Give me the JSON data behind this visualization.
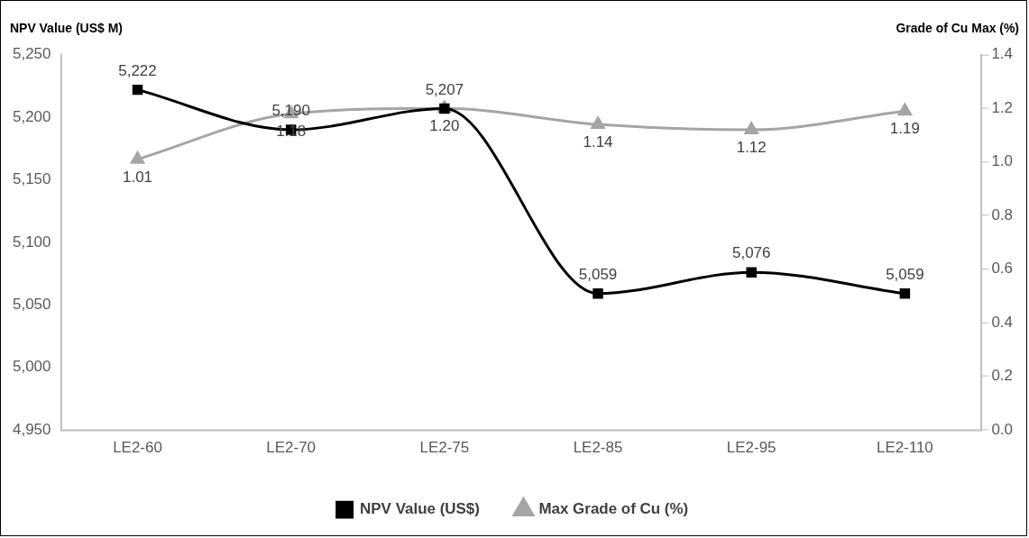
{
  "chart_data": {
    "type": "line",
    "ylabel": "NPV Value (US$ M)",
    "y2label": "Grade of Cu Max (%)",
    "categories": [
      "LE2-60",
      "LE2-70",
      "LE2-75",
      "LE2-85",
      "LE2-95",
      "LE2-110"
    ],
    "series": [
      {
        "name": "NPV Value (US$)",
        "color": "#000000",
        "marker": "square",
        "values": [
          5222,
          5190,
          5207,
          5059,
          5076,
          5059
        ],
        "value_labels": [
          "5,222",
          "5,190",
          "5,207",
          "5,059",
          "5,076",
          "5,059"
        ]
      },
      {
        "name": "Max Grade of Cu (%)",
        "color": "#a5a5a5",
        "marker": "triangle",
        "axis": "y2",
        "values": [
          1.01,
          1.18,
          1.2,
          1.14,
          1.12,
          1.19
        ],
        "value_labels": [
          "1.01",
          "1.18",
          "1.20",
          "1.14",
          "1.12",
          "1.19"
        ]
      }
    ],
    "ylim": [
      4950,
      5250
    ],
    "yticks": [
      {
        "value": 4950,
        "label": "4,950"
      },
      {
        "value": 5000,
        "label": "5,000"
      },
      {
        "value": 5050,
        "label": "5,050"
      },
      {
        "value": 5100,
        "label": "5,100"
      },
      {
        "value": 5150,
        "label": "5,150"
      },
      {
        "value": 5200,
        "label": "5,200"
      },
      {
        "value": 5250,
        "label": "5,250"
      }
    ],
    "y2lim": [
      0,
      1.4
    ],
    "y2ticks": [
      {
        "value": 0,
        "label": "0.0"
      },
      {
        "value": 0.2,
        "label": "0.2"
      },
      {
        "value": 0.4,
        "label": "0.4"
      },
      {
        "value": 0.6,
        "label": "0.6"
      },
      {
        "value": 0.8,
        "label": "0.8"
      },
      {
        "value": 1,
        "label": "1.0"
      },
      {
        "value": 1.2,
        "label": "1.2"
      },
      {
        "value": 1.4,
        "label": "1.4"
      }
    ],
    "grid": false,
    "legend": "bottom",
    "line_style": "solid"
  }
}
